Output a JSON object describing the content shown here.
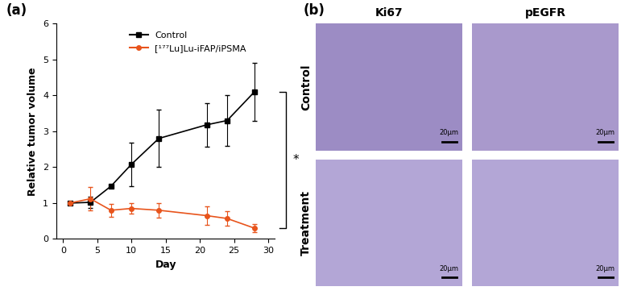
{
  "chart_data": {
    "type": "line",
    "title": "(a)",
    "x_label": "Day",
    "y_label": "Relative tumor volume",
    "x": [
      1,
      4,
      7,
      10,
      14,
      21,
      24,
      28
    ],
    "series": [
      {
        "name": "Control",
        "color": "#000000",
        "marker": "square",
        "line_style": "solid",
        "values": [
          1.0,
          1.02,
          1.47,
          2.08,
          2.8,
          3.18,
          3.3,
          4.1
        ],
        "errors": [
          0.0,
          0.15,
          0.05,
          0.6,
          0.8,
          0.6,
          0.7,
          0.8
        ]
      },
      {
        "name": "[¹⁷⁷Lu]Lu-iFAP/iPSMA",
        "color": "#e8541c",
        "marker": "circle",
        "line_style": "solid",
        "values": [
          1.0,
          1.12,
          0.8,
          0.85,
          0.8,
          0.65,
          0.57,
          0.3
        ],
        "errors": [
          0.05,
          0.33,
          0.18,
          0.15,
          0.2,
          0.25,
          0.2,
          0.12
        ]
      }
    ],
    "xlim": [
      -1,
      31
    ],
    "xticks": [
      0,
      5,
      10,
      15,
      20,
      25,
      30
    ],
    "ylim": [
      0,
      6
    ],
    "yticks": [
      0,
      1,
      2,
      3,
      4,
      5,
      6
    ],
    "legend": "upper left",
    "grid": false,
    "annotations": [
      "*"
    ]
  },
  "image_panel": {
    "label": "(b)",
    "columns": [
      "Ki67",
      "pEGFR"
    ],
    "rows": [
      "Control",
      "Treatment"
    ],
    "scale_bar": "20μm"
  }
}
